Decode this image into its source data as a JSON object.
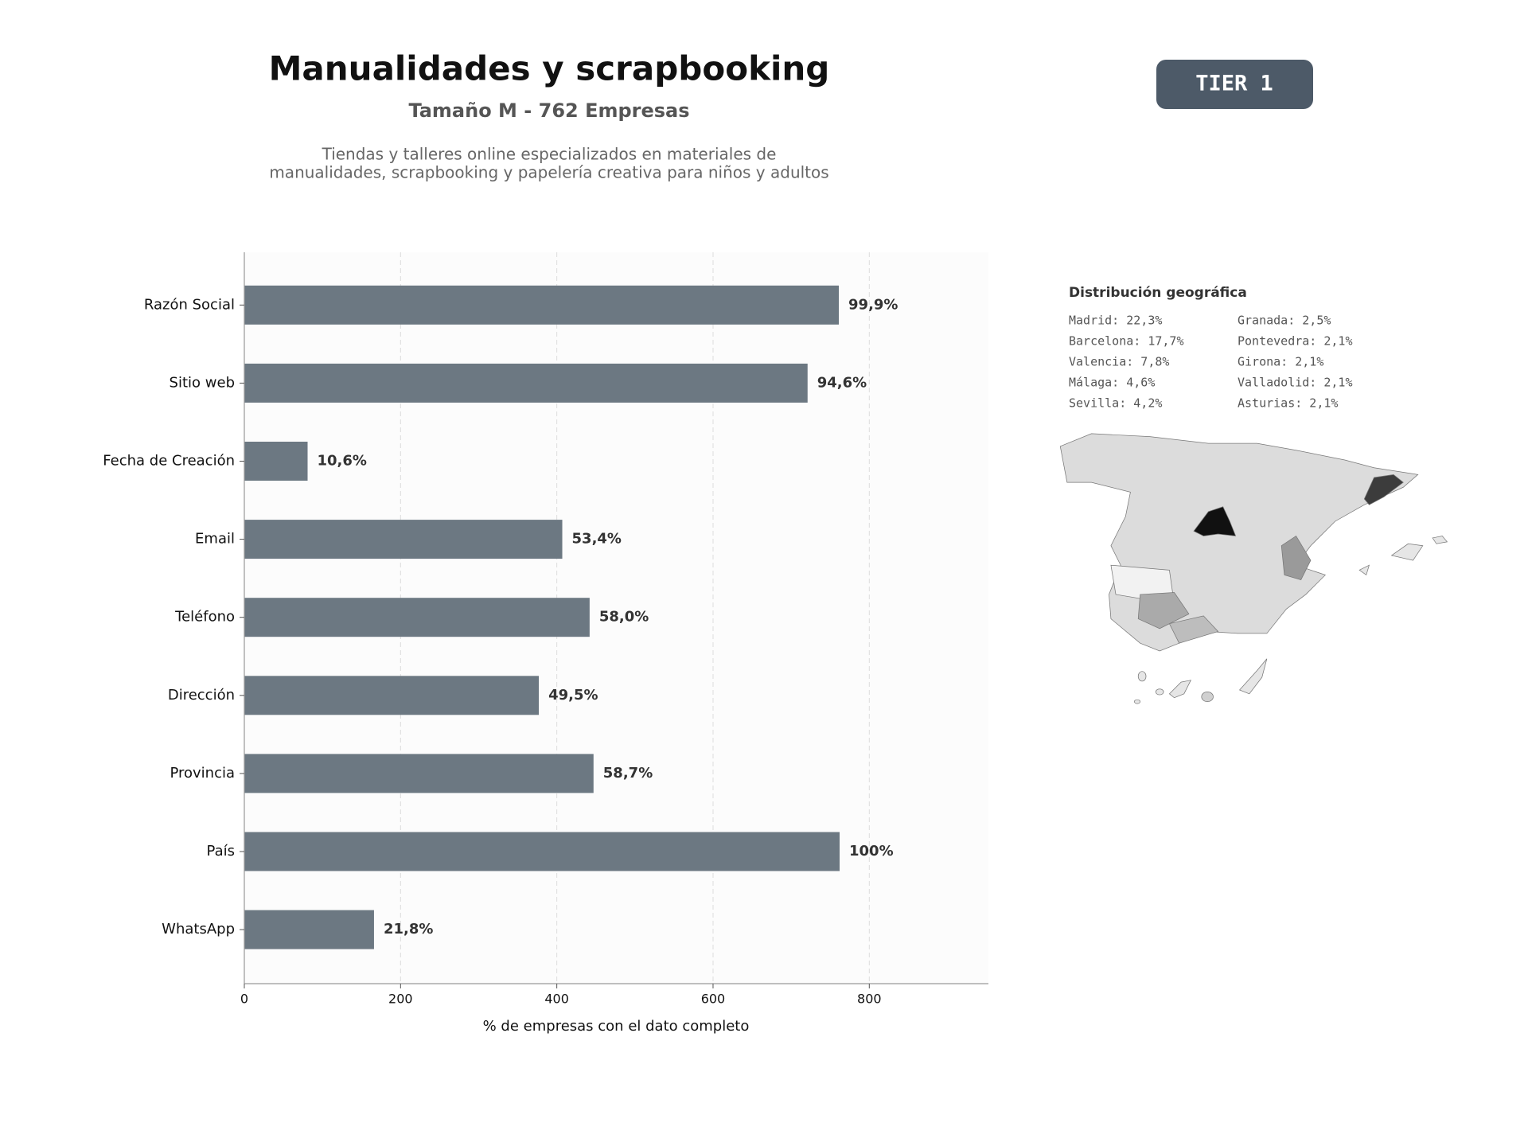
{
  "chart_data": {
    "type": "bar",
    "orientation": "horizontal",
    "title": "Manualidades y scrapbooking",
    "subtitle": "Tamaño M - 762 Empresas",
    "description": [
      "Tiendas y talleres online especializados en materiales de",
      "manualidades, scrapbooking y papelería creativa para niños y adultos"
    ],
    "badge": "TIER 1",
    "xlabel": "% de empresas con el dato completo",
    "categories": [
      "Razón Social",
      "Sitio web",
      "Fecha de Creación",
      "Email",
      "Teléfono",
      "Dirección",
      "Provincia",
      "País",
      "WhatsApp"
    ],
    "values": [
      761,
      721,
      81,
      407,
      442,
      377,
      447,
      762,
      166
    ],
    "value_labels": [
      "99,9%",
      "94,6%",
      "10,6%",
      "53,4%",
      "58,0%",
      "49,5%",
      "58,7%",
      "100%",
      "21,8%"
    ],
    "color": "#6c7882",
    "xlim": [
      0,
      952.5
    ],
    "xticks": [
      0,
      200,
      400,
      600,
      800
    ],
    "grid": true,
    "geo": {
      "title": "Distribución geográfica",
      "items": [
        "Madrid: 22,3%",
        "Barcelona: 17,7%",
        "Valencia: 7,8%",
        "Málaga: 4,6%",
        "Sevilla: 4,2%",
        "Granada: 2,5%",
        "Pontevedra: 2,1%",
        "Girona: 2,1%",
        "Valladolid: 2,1%",
        "Asturias: 2,1%"
      ]
    }
  }
}
